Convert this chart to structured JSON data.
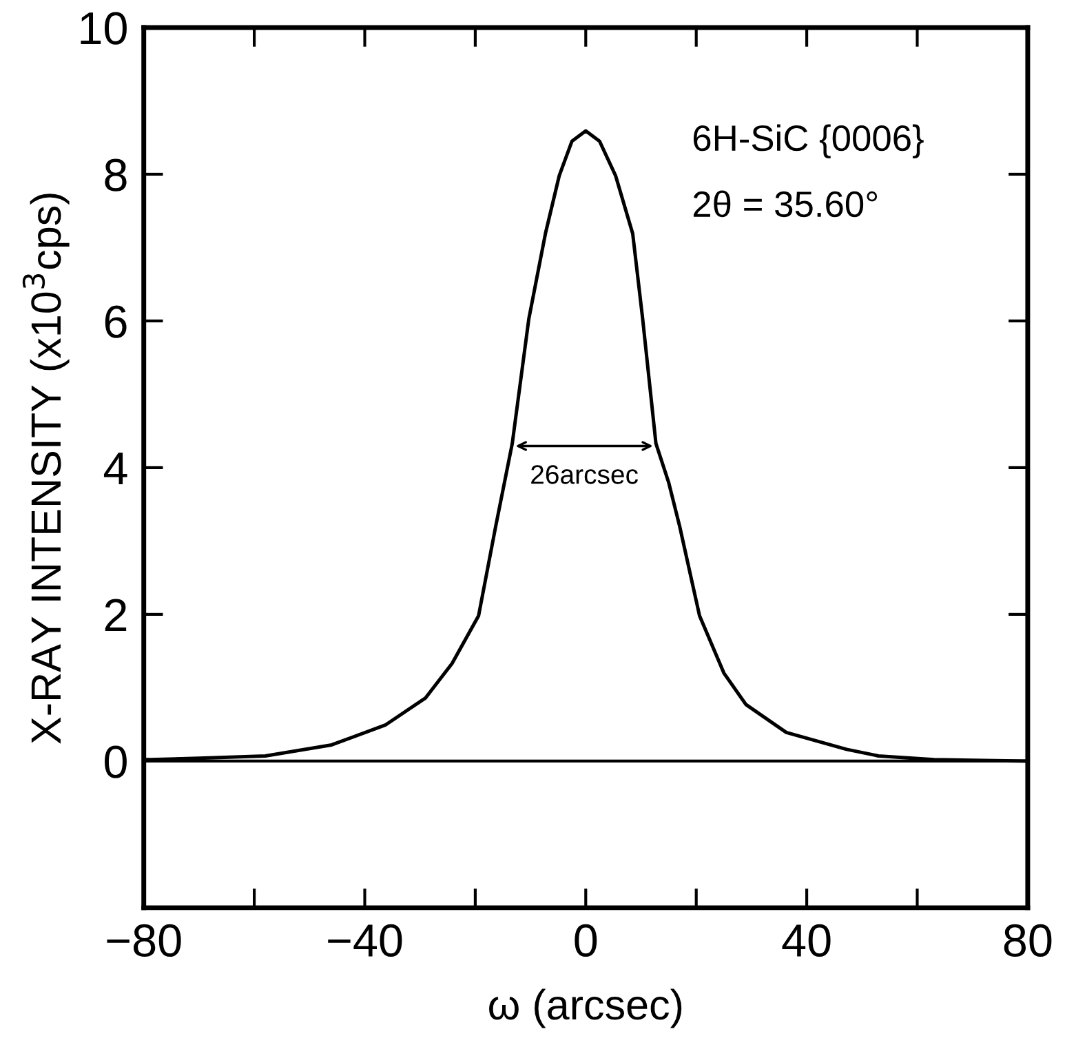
{
  "chart_data": {
    "type": "line",
    "xlabel": "ω (arcsec)",
    "ylabel": "X-RAY INTENSITY (x10$^{3}$cps)",
    "annotations": [
      "6H-SiC {0006}",
      "2θ = 35.60°",
      "26arcsec"
    ],
    "series": [
      {
        "color": "#000000",
        "x": [
          -80,
          -78.7,
          -70,
          -58,
          -46,
          -36.3,
          -29,
          -24.2,
          -19.4,
          -16.3,
          -13.3,
          -10.3,
          -7.3,
          -4.8,
          -2.5,
          0,
          2.5,
          5.4,
          8.5,
          10.3,
          12.7,
          15,
          17,
          20.6,
          25,
          29,
          36.3,
          47.2,
          53,
          63,
          70,
          80
        ],
        "values": [
          0.02,
          0.02,
          0.04,
          0.07,
          0.22,
          0.49,
          0.86,
          1.33,
          1.98,
          3.2,
          4.33,
          6.03,
          7.19,
          7.98,
          8.45,
          8.59,
          8.45,
          7.98,
          7.19,
          6.03,
          4.33,
          3.8,
          3.2,
          1.98,
          1.2,
          0.77,
          0.39,
          0.16,
          0.07,
          0.02,
          0.01,
          0.0
        ]
      }
    ],
    "ref_lines": [
      {
        "axis": "y",
        "value": 0,
        "color": "#000000"
      }
    ],
    "xlim": [
      -80,
      80
    ],
    "ylim": [
      -2,
      10
    ],
    "xticks": [
      -80,
      {
        "value": -60,
        "label": null
      },
      -40,
      {
        "value": -20,
        "label": null
      },
      0,
      {
        "value": 20,
        "label": null
      },
      40,
      {
        "value": 60,
        "label": null
      },
      80
    ],
    "yticks": [
      0,
      2,
      4,
      6,
      8,
      10
    ],
    "grid": false,
    "legend": false,
    "marker": "none",
    "line_style": "solid"
  }
}
